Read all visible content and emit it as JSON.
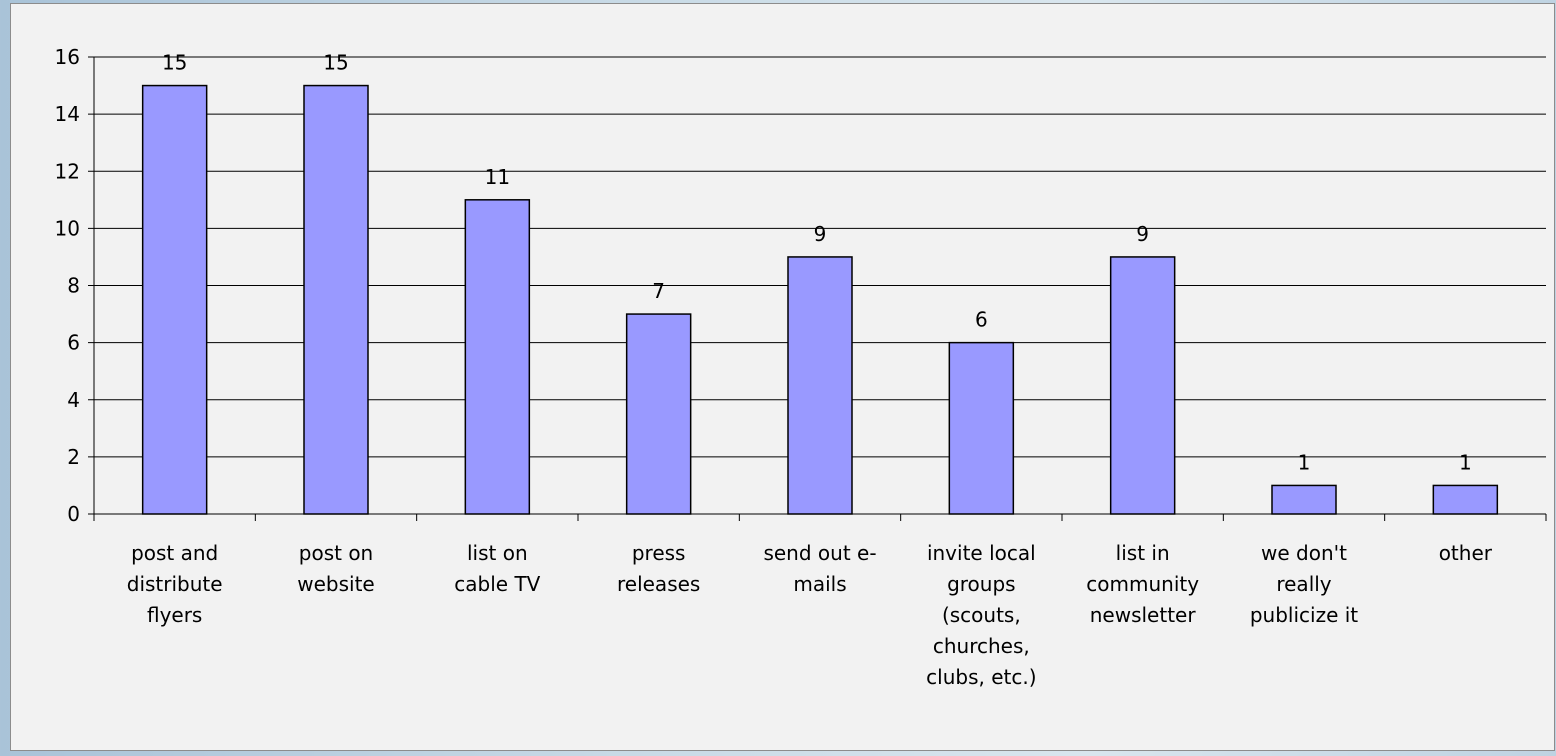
{
  "chart_data": {
    "type": "bar",
    "title": "",
    "xlabel": "",
    "ylabel": "",
    "ylim": [
      0,
      16
    ],
    "yticks": [
      "0",
      "2",
      "4",
      "6",
      "8",
      "10",
      "12",
      "14",
      "16"
    ],
    "grid": true,
    "bar_color": "#9999ff",
    "categories": [
      [
        "post and",
        "distribute",
        "flyers"
      ],
      [
        "post on",
        "website"
      ],
      [
        "list on",
        "cable TV"
      ],
      [
        "press",
        "releases"
      ],
      [
        "send out e-",
        "mails"
      ],
      [
        "invite local",
        "groups",
        "(scouts,",
        "churches,",
        "clubs, etc.)"
      ],
      [
        "list in",
        "community",
        "newsletter"
      ],
      [
        "we don't",
        "really",
        "publicize it"
      ],
      [
        "other"
      ]
    ],
    "values": [
      15,
      15,
      11,
      7,
      9,
      6,
      9,
      1,
      1
    ],
    "data_labels": [
      "15",
      "15",
      "11",
      "7",
      "9",
      "6",
      "9",
      "1",
      "1"
    ]
  }
}
